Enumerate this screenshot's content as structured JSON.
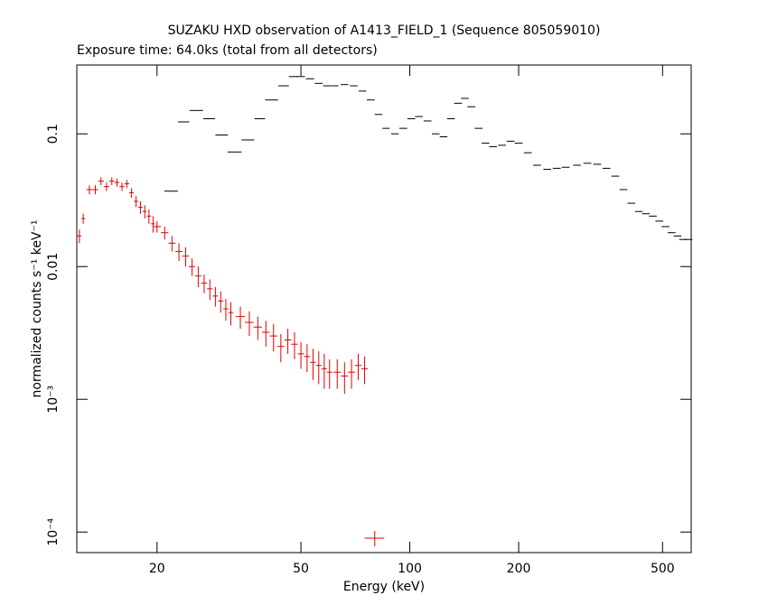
{
  "chart_data": {
    "type": "errorbar",
    "title": "SUZAKU HXD observation of A1413_FIELD_1 (Sequence 805059010)",
    "subtitle": "Exposure time: 64.0ks (total from all detectors)",
    "x_label": "Energy (keV)",
    "y_label": "normalized counts s⁻¹ keV⁻¹",
    "xscale": "log",
    "yscale": "log",
    "xlim": [
      12,
      600
    ],
    "ylim": [
      7e-05,
      0.33
    ],
    "xticks": [
      20,
      50,
      100,
      200,
      500
    ],
    "yticks": [
      0.1,
      0.01,
      {
        "value": 0.001,
        "label": "10⁻³"
      },
      {
        "value": 0.0001,
        "label": "10⁻⁴"
      }
    ],
    "series": [
      {
        "color": "#e00000",
        "x": [
          12.2,
          12.5,
          13.0,
          13.5,
          14.0,
          14.5,
          15.0,
          15.5,
          16.0,
          16.5,
          17.0,
          17.5,
          18.0,
          18.5,
          19.0,
          19.5,
          20,
          21,
          22,
          23,
          24,
          25,
          26,
          27,
          28,
          29,
          30,
          31,
          32,
          34,
          36,
          38,
          40,
          42,
          44,
          46,
          48,
          50,
          52,
          54,
          56,
          58,
          60,
          63,
          66,
          69,
          72,
          75,
          80
        ],
        "values": [
          0.017,
          0.023,
          0.038,
          0.038,
          0.044,
          0.04,
          0.044,
          0.043,
          0.04,
          0.042,
          0.036,
          0.031,
          0.028,
          0.026,
          0.024,
          0.021,
          0.02,
          0.018,
          0.015,
          0.013,
          0.012,
          0.01,
          0.0085,
          0.0075,
          0.0068,
          0.006,
          0.0055,
          0.0048,
          0.0045,
          0.0042,
          0.0038,
          0.0035,
          0.0032,
          0.003,
          0.0025,
          0.0028,
          0.0026,
          0.0022,
          0.0021,
          0.0019,
          0.0018,
          0.0017,
          0.0016,
          0.0016,
          0.0015,
          0.0016,
          0.0018,
          0.0017,
          9e-05
        ],
        "xerr": [
          0.15,
          0.15,
          0.25,
          0.25,
          0.25,
          0.25,
          0.25,
          0.25,
          0.25,
          0.25,
          0.25,
          0.25,
          0.25,
          0.25,
          0.25,
          0.25,
          0.5,
          0.5,
          0.5,
          0.5,
          0.5,
          0.5,
          0.5,
          0.5,
          0.5,
          0.5,
          0.5,
          0.5,
          0.5,
          1,
          1,
          1,
          1,
          1,
          1,
          1,
          1,
          1,
          1,
          1,
          1,
          1,
          1,
          1.5,
          1.5,
          1.5,
          1.5,
          1.5,
          5
        ],
        "yerr": [
          0.002,
          0.002,
          0.003,
          0.003,
          0.003,
          0.003,
          0.003,
          0.003,
          0.003,
          0.003,
          0.003,
          0.003,
          0.003,
          0.003,
          0.003,
          0.003,
          0.002,
          0.002,
          0.002,
          0.002,
          0.002,
          0.0015,
          0.0015,
          0.0012,
          0.0012,
          0.001,
          0.001,
          0.0009,
          0.0009,
          0.0008,
          0.0008,
          0.0007,
          0.0007,
          0.0007,
          0.0006,
          0.0006,
          0.0006,
          0.0005,
          0.0005,
          0.0005,
          0.0005,
          0.0005,
          0.0004,
          0.0004,
          0.0004,
          0.0004,
          0.0004,
          0.0004,
          1.2e-05
        ]
      },
      {
        "color": "#000000",
        "x": [
          21.9,
          23.7,
          25.7,
          27.9,
          30.2,
          32.8,
          35.7,
          38.5,
          41.5,
          44.8,
          47.7,
          50,
          53,
          56,
          59,
          62,
          66,
          70,
          74,
          78,
          82,
          86,
          91,
          96,
          101,
          106,
          112,
          118,
          124,
          130,
          136,
          142,
          148,
          155,
          162,
          170,
          180,
          190,
          200,
          212,
          225,
          240,
          255,
          270,
          290,
          310,
          330,
          350,
          370,
          390,
          410,
          430,
          450,
          470,
          490,
          510,
          530,
          550,
          570,
          590
        ],
        "values": [
          0.037,
          0.123,
          0.15,
          0.13,
          0.098,
          0.073,
          0.09,
          0.13,
          0.18,
          0.23,
          0.27,
          0.27,
          0.26,
          0.24,
          0.23,
          0.23,
          0.235,
          0.23,
          0.21,
          0.18,
          0.14,
          0.11,
          0.1,
          0.11,
          0.13,
          0.135,
          0.125,
          0.1,
          0.095,
          0.13,
          0.17,
          0.185,
          0.16,
          0.11,
          0.085,
          0.08,
          0.082,
          0.088,
          0.085,
          0.072,
          0.058,
          0.054,
          0.055,
          0.056,
          0.058,
          0.06,
          0.059,
          0.055,
          0.048,
          0.038,
          0.03,
          0.026,
          0.025,
          0.024,
          0.022,
          0.02,
          0.018,
          0.017,
          0.016,
          0.016
        ],
        "xerr": [
          0.95,
          0.85,
          1.1,
          1.05,
          1.2,
          1.45,
          1.45,
          1.3,
          1.7,
          1.5,
          1.4,
          1.3,
          1.4,
          1.4,
          1.4,
          1.5,
          1.6,
          1.7,
          1.8,
          1.9,
          2,
          2,
          2.2,
          2.4,
          2.5,
          2.6,
          2.8,
          2.9,
          3,
          3.2,
          3.4,
          3.5,
          3.7,
          3.9,
          4,
          4.2,
          4.5,
          4.7,
          5,
          5.3,
          5.6,
          6,
          6.4,
          6.8,
          7.2,
          7.7,
          8.2,
          8.7,
          9.2,
          9.7,
          10,
          10.7,
          11,
          11.7,
          12,
          12.7,
          13,
          13.7,
          14,
          14.7
        ]
      }
    ]
  }
}
